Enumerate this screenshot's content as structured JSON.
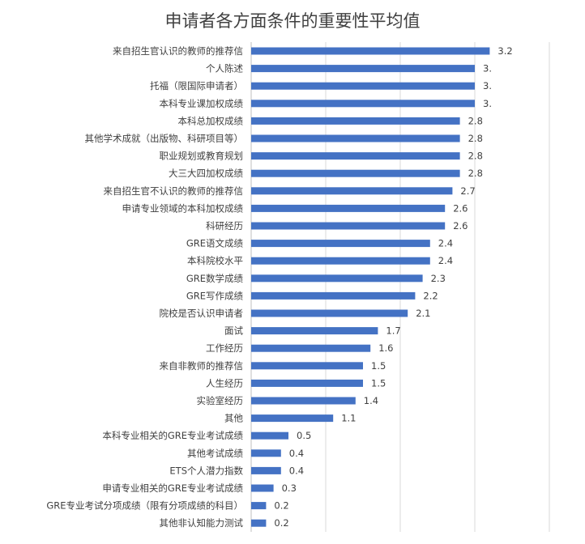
{
  "chart_data": {
    "type": "bar",
    "orientation": "horizontal",
    "title": "申请者各方面条件的重要性平均值",
    "xlim": [
      0,
      4
    ],
    "grid": true,
    "bar_color": "#4472c4",
    "categories": [
      "来自招生官认识的教师的推荐信",
      "个人陈述",
      "托福（限国际申请者）",
      "本科专业课加权成绩",
      "本科总加权成绩",
      "其他学术成就（出版物、科研项目等）",
      "职业规划或教育规划",
      "大三大四加权成绩",
      "来自招生官不认识的教师的推荐信",
      "申请专业领域的本科加权成绩",
      "科研经历",
      "GRE语文成绩",
      "本科院校水平",
      "GRE数学成绩",
      "GRE写作成绩",
      "院校是否认识申请者",
      "面试",
      "工作经历",
      "来自非教师的推荐信",
      "人生经历",
      "实验室经历",
      "其他",
      "本科专业相关的GRE专业考试成绩",
      "其他考试成绩",
      "ETS个人潜力指数",
      "申请专业相关的GRE专业考试成绩",
      "GRE专业考试分项成绩（限有分项成绩的科目）",
      "其他非认知能力测试"
    ],
    "values": [
      3.2,
      3.0,
      3.0,
      3.0,
      2.8,
      2.8,
      2.8,
      2.8,
      2.7,
      2.6,
      2.6,
      2.4,
      2.4,
      2.3,
      2.2,
      2.1,
      1.7,
      1.6,
      1.5,
      1.5,
      1.4,
      1.1,
      0.5,
      0.4,
      0.4,
      0.3,
      0.2,
      0.2
    ],
    "value_labels": [
      "3.2",
      "3.",
      "3.",
      "3.",
      "2.8",
      "2.8",
      "2.8",
      "2.8",
      "2.7",
      "2.6",
      "2.6",
      "2.4",
      "2.4",
      "2.3",
      "2.2",
      "2.1",
      "1.7",
      "1.6",
      "1.5",
      "1.5",
      "1.4",
      "1.1",
      "0.5",
      "0.4",
      "0.4",
      "0.3",
      "0.2",
      "0.2"
    ]
  }
}
